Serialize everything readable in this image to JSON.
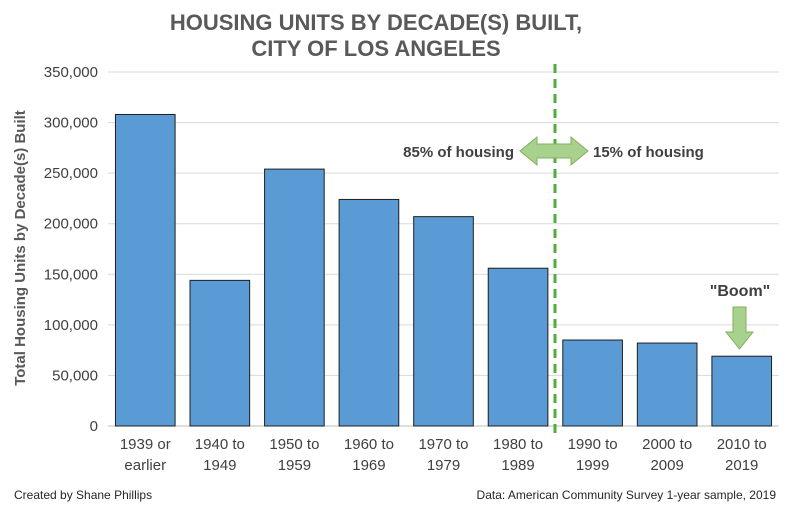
{
  "chart_data": {
    "type": "bar",
    "title_lines": [
      "HOUSING UNITS BY DECADE(S) BUILT,",
      "CITY OF LOS ANGELES"
    ],
    "xlabel": "",
    "ylabel": "Total Housing Units by Decade(s) Built",
    "categories": [
      [
        "1939 or",
        "earlier"
      ],
      [
        "1940 to",
        "1949"
      ],
      [
        "1950 to",
        "1959"
      ],
      [
        "1960 to",
        "1969"
      ],
      [
        "1970 to",
        "1979"
      ],
      [
        "1980 to",
        "1989"
      ],
      [
        "1990 to",
        "1999"
      ],
      [
        "2000 to",
        "2009"
      ],
      [
        "2010 to",
        "2019"
      ]
    ],
    "values": [
      308000,
      144000,
      254000,
      224000,
      207000,
      156000,
      85000,
      82000,
      69000
    ],
    "ylim": [
      0,
      350000
    ],
    "yticks": [
      "0",
      "50,000",
      "100,000",
      "150,000",
      "200,000",
      "250,000",
      "300,000",
      "350,000"
    ],
    "ytick_values": [
      0,
      50000,
      100000,
      150000,
      200000,
      250000,
      300000,
      350000
    ],
    "grid": true,
    "bar_color": "#5B9BD5",
    "annotations": {
      "left_share": "85% of housing",
      "right_share": "15% of housing",
      "boom": "\"Boom\"",
      "arrow_color": "#A9D18E",
      "divider_color": "#4CAF3A"
    }
  },
  "footer": {
    "credit": "Created by Shane Phillips",
    "source": "Data: American Community Survey 1-year sample, 2019"
  }
}
